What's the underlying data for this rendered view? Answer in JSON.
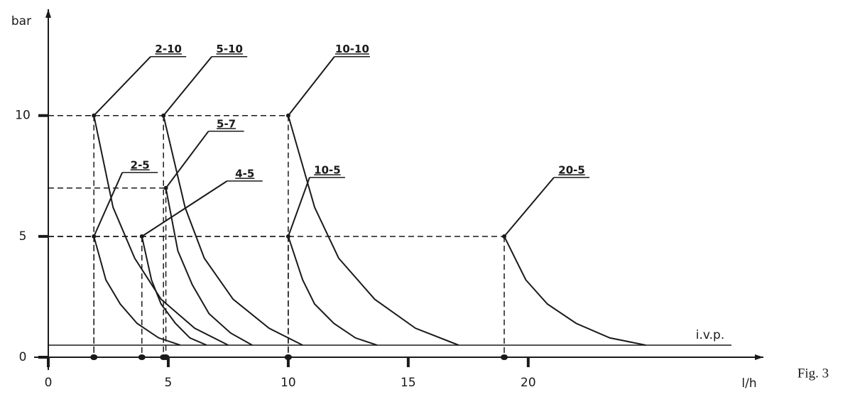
{
  "chart_data": {
    "type": "line",
    "x_label": "l/h",
    "y_label": "bar",
    "figure_label": "Fig. 3",
    "xlim": [
      0,
      29.8
    ],
    "ylim": [
      0,
      14.4
    ],
    "xticks": [
      0,
      5,
      10,
      15,
      20
    ],
    "yticks": [
      0,
      5,
      10
    ],
    "reference_line": {
      "label": "i.v.p.",
      "value": 0.5
    },
    "color": "#1a1a1a",
    "series": [
      {
        "name": "2-10",
        "x": [
          1.9,
          2.7,
          3.6,
          4.7,
          6.1,
          7.5
        ],
        "values": [
          10,
          6.2,
          4.1,
          2.4,
          1.2,
          0.5
        ]
      },
      {
        "name": "5-10",
        "x": [
          4.8,
          5.7,
          6.5,
          7.7,
          9.2,
          10.6
        ],
        "values": [
          10,
          6.2,
          4.1,
          2.4,
          1.2,
          0.5
        ]
      },
      {
        "name": "10-10",
        "x": [
          10,
          11.1,
          12.1,
          13.6,
          15.3,
          17.1
        ],
        "values": [
          10,
          6.2,
          4.1,
          2.4,
          1.2,
          0.5
        ]
      },
      {
        "name": "5-7",
        "x": [
          4.9,
          5.4,
          6.0,
          6.7,
          7.6,
          8.5
        ],
        "values": [
          7,
          4.4,
          3.0,
          1.8,
          1.0,
          0.5
        ]
      },
      {
        "name": "2-5",
        "x": [
          1.9,
          2.4,
          3.0,
          3.7,
          4.6,
          5.5
        ],
        "values": [
          5,
          3.2,
          2.2,
          1.4,
          0.8,
          0.5
        ]
      },
      {
        "name": "4-5",
        "x": [
          3.9,
          4.3,
          4.7,
          5.3,
          5.9,
          6.6
        ],
        "values": [
          5,
          3.2,
          2.2,
          1.4,
          0.8,
          0.5
        ]
      },
      {
        "name": "10-5",
        "x": [
          10,
          10.6,
          11.1,
          11.9,
          12.8,
          13.7
        ],
        "values": [
          5,
          3.2,
          2.2,
          1.4,
          0.8,
          0.5
        ]
      },
      {
        "name": "20-5",
        "x": [
          19,
          19.9,
          20.8,
          22,
          23.4,
          24.9
        ],
        "values": [
          5,
          3.2,
          2.2,
          1.4,
          0.8,
          0.5
        ]
      }
    ]
  }
}
